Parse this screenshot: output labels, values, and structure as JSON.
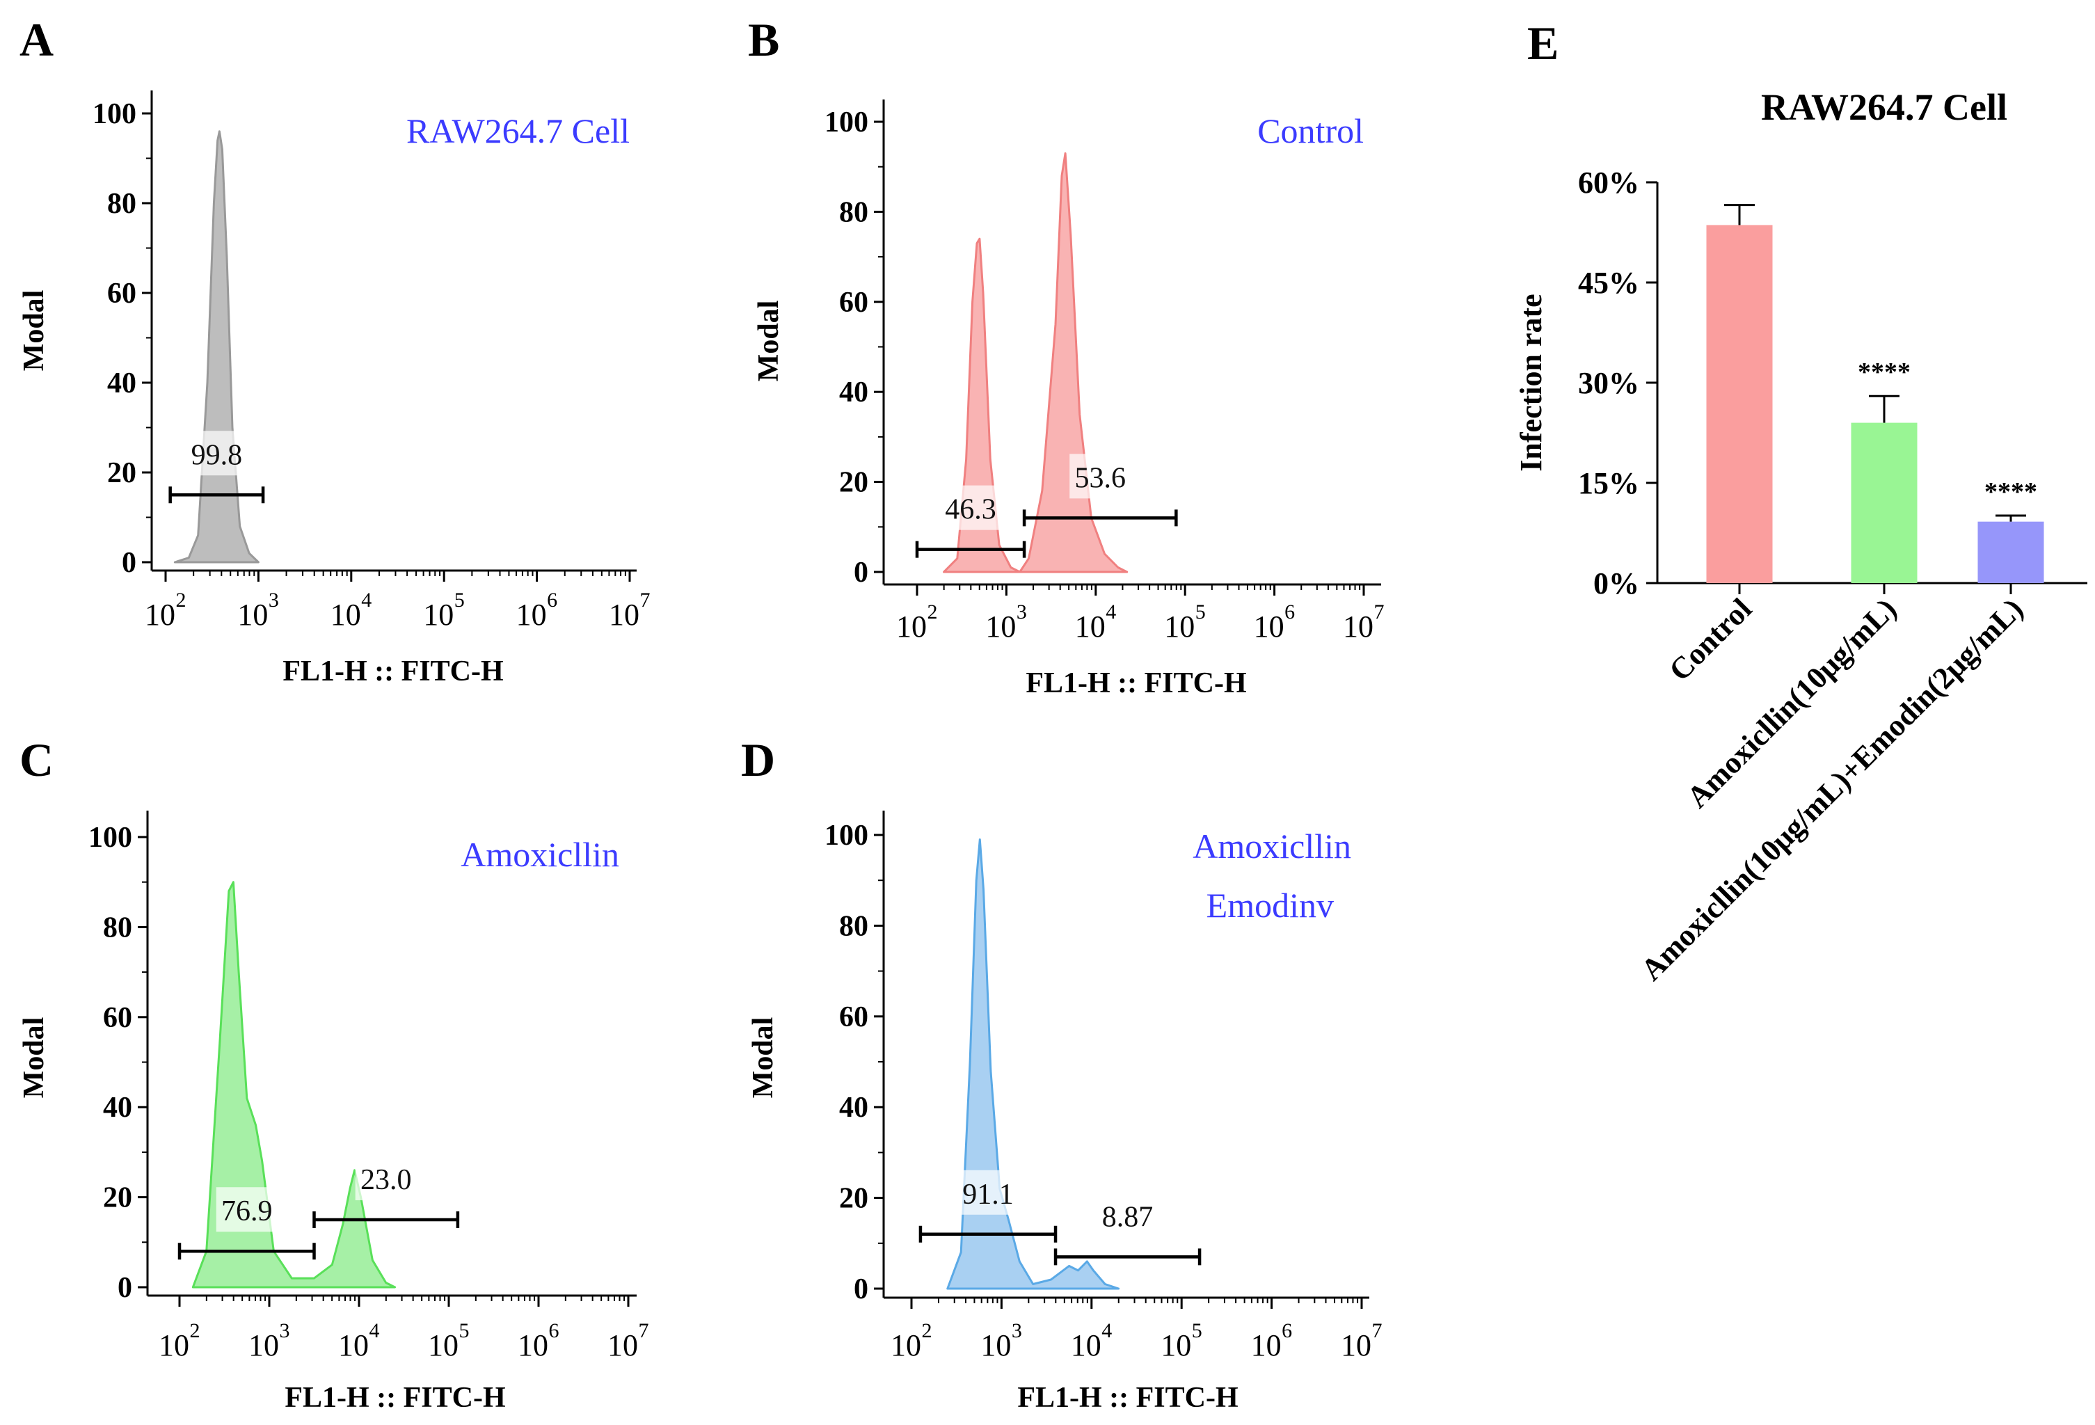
{
  "chart_data": [
    {
      "id": "A",
      "type": "area",
      "panel_letter": "A",
      "title": "RAW264.7 Cell",
      "xlabel": "FL1-H :: FITC-H",
      "ylabel": "Modal",
      "xscale": "log",
      "xlim": [
        100,
        10000000
      ],
      "ylim": [
        0,
        100
      ],
      "yticks": [
        "0",
        "20",
        "40",
        "60",
        "80",
        "100"
      ],
      "xticks": [
        {
          "base": "10",
          "exp": "2"
        },
        {
          "base": "10",
          "exp": "3"
        },
        {
          "base": "10",
          "exp": "4"
        },
        {
          "base": "10",
          "exp": "5"
        },
        {
          "base": "10",
          "exp": "6"
        },
        {
          "base": "10",
          "exp": "7"
        }
      ],
      "series": [
        {
          "name": "RAW264.7 Cell",
          "color": "#999999",
          "fill": "#bdbdbd",
          "points": [
            [
              2.1,
              0
            ],
            [
              2.25,
              1
            ],
            [
              2.35,
              6
            ],
            [
              2.45,
              40
            ],
            [
              2.52,
              80
            ],
            [
              2.56,
              94
            ],
            [
              2.58,
              96
            ],
            [
              2.61,
              92
            ],
            [
              2.66,
              68
            ],
            [
              2.72,
              30
            ],
            [
              2.8,
              8
            ],
            [
              2.9,
              2
            ],
            [
              3.0,
              0
            ]
          ]
        }
      ],
      "gates": [
        {
          "label": "99.8",
          "start": 2.05,
          "end": 3.05,
          "y": 15
        }
      ]
    },
    {
      "id": "B",
      "type": "area",
      "panel_letter": "B",
      "title": "Control",
      "xlabel": "FL1-H :: FITC-H",
      "ylabel": "Modal",
      "xscale": "log",
      "xlim": [
        100,
        10000000
      ],
      "ylim": [
        0,
        100
      ],
      "yticks": [
        "0",
        "20",
        "40",
        "60",
        "80",
        "100"
      ],
      "xticks": [
        {
          "base": "10",
          "exp": "2"
        },
        {
          "base": "10",
          "exp": "3"
        },
        {
          "base": "10",
          "exp": "4"
        },
        {
          "base": "10",
          "exp": "5"
        },
        {
          "base": "10",
          "exp": "6"
        },
        {
          "base": "10",
          "exp": "7"
        }
      ],
      "series": [
        {
          "name": "Control",
          "color": "#f08080",
          "fill": "#f9b3b3",
          "points": [
            [
              2.3,
              0
            ],
            [
              2.45,
              3
            ],
            [
              2.55,
              25
            ],
            [
              2.62,
              60
            ],
            [
              2.67,
              73
            ],
            [
              2.7,
              74
            ],
            [
              2.74,
              62
            ],
            [
              2.82,
              25
            ],
            [
              2.92,
              6
            ],
            [
              3.05,
              1
            ],
            [
              3.15,
              0
            ],
            [
              3.25,
              3
            ],
            [
              3.4,
              18
            ],
            [
              3.55,
              55
            ],
            [
              3.62,
              88
            ],
            [
              3.66,
              93
            ],
            [
              3.72,
              75
            ],
            [
              3.82,
              35
            ],
            [
              3.95,
              12
            ],
            [
              4.1,
              4
            ],
            [
              4.25,
              1
            ],
            [
              4.35,
              0
            ]
          ]
        }
      ],
      "gates": [
        {
          "label": "46.3",
          "start": 2.0,
          "end": 3.2,
          "y": 5
        },
        {
          "label": "53.6",
          "start": 3.2,
          "end": 4.9,
          "y": 12
        }
      ]
    },
    {
      "id": "C",
      "type": "area",
      "panel_letter": "C",
      "title": "Amoxicllin",
      "xlabel": "FL1-H :: FITC-H",
      "ylabel": "Modal",
      "xscale": "log",
      "xlim": [
        100,
        10000000
      ],
      "ylim": [
        0,
        100
      ],
      "yticks": [
        "0",
        "20",
        "40",
        "60",
        "80",
        "100"
      ],
      "xticks": [
        {
          "base": "10",
          "exp": "2"
        },
        {
          "base": "10",
          "exp": "3"
        },
        {
          "base": "10",
          "exp": "4"
        },
        {
          "base": "10",
          "exp": "5"
        },
        {
          "base": "10",
          "exp": "6"
        },
        {
          "base": "10",
          "exp": "7"
        }
      ],
      "series": [
        {
          "name": "Amoxicllin",
          "color": "#59e059",
          "fill": "#a6f0a6",
          "points": [
            [
              2.15,
              0
            ],
            [
              2.3,
              8
            ],
            [
              2.45,
              55
            ],
            [
              2.55,
              88
            ],
            [
              2.6,
              90
            ],
            [
              2.66,
              70
            ],
            [
              2.75,
              42
            ],
            [
              2.85,
              36
            ],
            [
              2.92,
              28
            ],
            [
              3.05,
              8
            ],
            [
              3.25,
              2
            ],
            [
              3.5,
              2
            ],
            [
              3.7,
              5
            ],
            [
              3.82,
              14
            ],
            [
              3.9,
              22
            ],
            [
              3.95,
              26
            ],
            [
              4.02,
              20
            ],
            [
              4.15,
              6
            ],
            [
              4.3,
              1
            ],
            [
              4.4,
              0
            ]
          ]
        }
      ],
      "gates": [
        {
          "label": "76.9",
          "start": 2.0,
          "end": 3.5,
          "y": 8
        },
        {
          "label": "23.0",
          "start": 3.5,
          "end": 5.1,
          "y": 15
        }
      ]
    },
    {
      "id": "D",
      "type": "area",
      "panel_letter": "D",
      "title": "Amoxicllin",
      "subtitle": "Emodinv",
      "xlabel": "FL1-H :: FITC-H",
      "ylabel": "Modal",
      "xscale": "log",
      "xlim": [
        100,
        10000000
      ],
      "ylim": [
        0,
        100
      ],
      "yticks": [
        "0",
        "20",
        "40",
        "60",
        "80",
        "100"
      ],
      "xticks": [
        {
          "base": "10",
          "exp": "2"
        },
        {
          "base": "10",
          "exp": "3"
        },
        {
          "base": "10",
          "exp": "4"
        },
        {
          "base": "10",
          "exp": "5"
        },
        {
          "base": "10",
          "exp": "6"
        },
        {
          "base": "10",
          "exp": "7"
        }
      ],
      "series": [
        {
          "name": "Amoxicllin Emodinv",
          "color": "#5aa9e6",
          "fill": "#a9d0f2",
          "points": [
            [
              2.4,
              0
            ],
            [
              2.55,
              8
            ],
            [
              2.65,
              50
            ],
            [
              2.72,
              90
            ],
            [
              2.76,
              99
            ],
            [
              2.8,
              88
            ],
            [
              2.88,
              48
            ],
            [
              2.98,
              22
            ],
            [
              3.08,
              15
            ],
            [
              3.2,
              6
            ],
            [
              3.35,
              1
            ],
            [
              3.55,
              2
            ],
            [
              3.75,
              5
            ],
            [
              3.85,
              4
            ],
            [
              3.95,
              6
            ],
            [
              4.02,
              4
            ],
            [
              4.15,
              1
            ],
            [
              4.3,
              0
            ]
          ]
        }
      ],
      "gates": [
        {
          "label": "91.1",
          "start": 2.1,
          "end": 3.6,
          "y": 12
        },
        {
          "label": "8.87",
          "start": 3.6,
          "end": 5.2,
          "y": 7
        }
      ]
    },
    {
      "id": "E",
      "type": "bar",
      "panel_letter": "E",
      "title": "RAW264.7 Cell",
      "ylabel": "Infection rate",
      "ylim": [
        0,
        60
      ],
      "yticks": [
        "0%",
        "15%",
        "30%",
        "45%",
        "60%"
      ],
      "categories": [
        "Control",
        "Amoxicllin(10μg/mL)",
        "Amoxicllin(10μg/mL)+Emodin(2μg/mL)"
      ],
      "values": [
        53.6,
        24.0,
        9.2
      ],
      "errors": [
        3.0,
        4.0,
        0.9
      ],
      "colors": [
        "#fa9e9e",
        "#99f594",
        "#9696fa"
      ],
      "significance": [
        "",
        "****",
        "****"
      ]
    }
  ]
}
